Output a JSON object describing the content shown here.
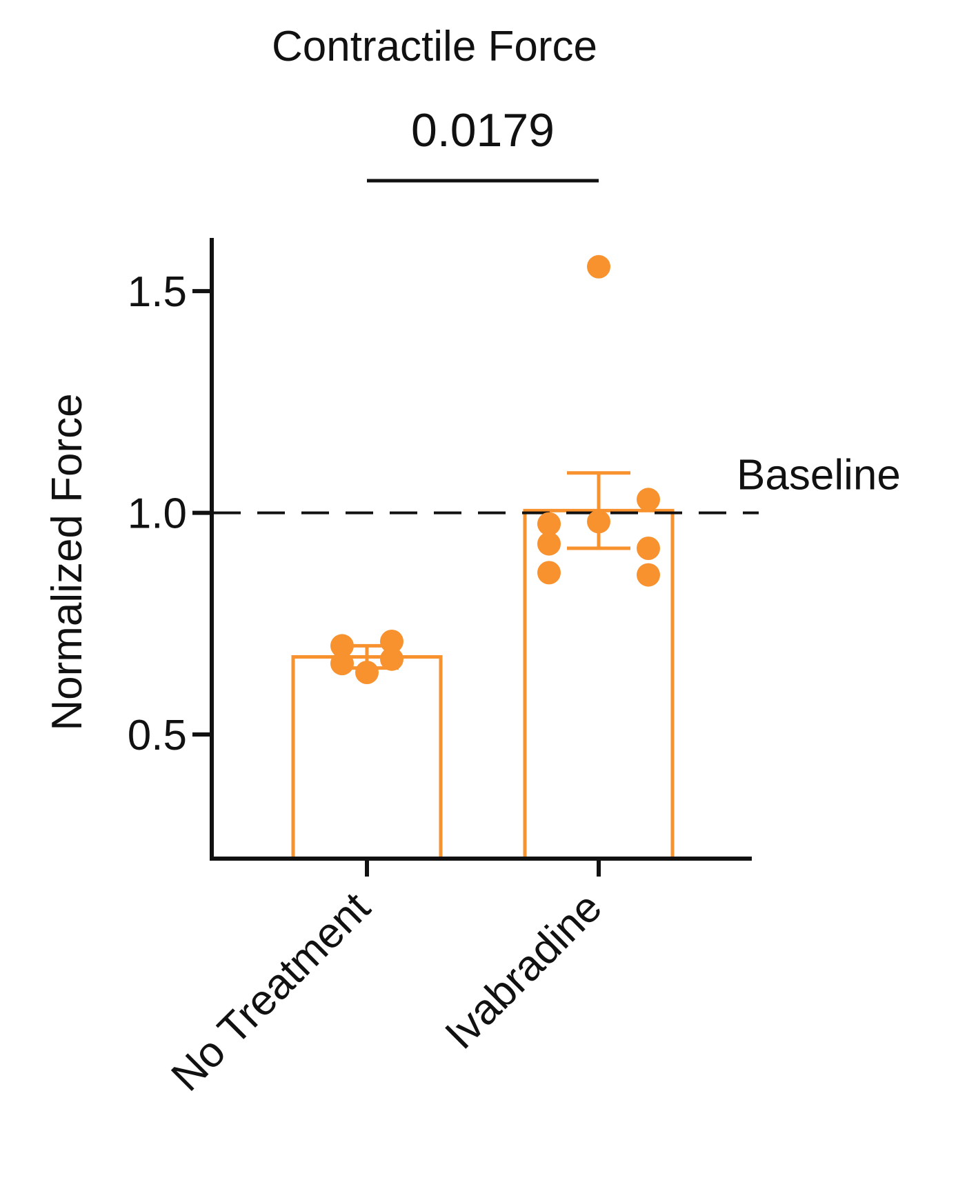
{
  "chart_data": {
    "type": "bar",
    "title": "Contractile Force",
    "ylabel": "Normalized Force",
    "xlabel": "",
    "categories": [
      "No Treatment",
      "Ivabradine"
    ],
    "values": [
      0.675,
      1.005
    ],
    "error": [
      0.025,
      0.085
    ],
    "points": [
      [
        0.7,
        0.71,
        0.66,
        0.67,
        0.64
      ],
      [
        1.555,
        1.03,
        0.98,
        0.975,
        0.92,
        0.93,
        0.86,
        0.865
      ]
    ],
    "ylim": [
      0.22,
      1.62
    ],
    "yticks": [
      0.5,
      1.0,
      1.5
    ],
    "ytick_labels": [
      "0.5",
      "1.0",
      "1.5"
    ],
    "baseline": {
      "value": 1.0,
      "label": "Baseline"
    },
    "significance": {
      "label": "0.0179",
      "between": [
        "No Treatment",
        "Ivabradine"
      ]
    },
    "grid": false,
    "colors": {
      "bar_edge": "#f7922f",
      "points": "#f7922f",
      "axis": "#111111"
    }
  }
}
